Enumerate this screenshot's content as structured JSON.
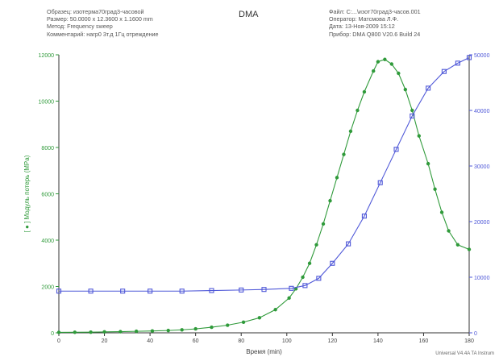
{
  "header": {
    "title": "DMA",
    "left_lines": [
      "Образец: изотерма70град3-часовой",
      "Размер:  50.0000 x 12.3600 x 1.1600 mm",
      "Метод: Frequency sweep",
      "Комментарий: нагр0 3т.д 1Гц отреждение"
    ],
    "right_lines": [
      "Файл: C:...\\изот70град3-часов.001",
      "Оператор: Матсмова Л.Ф.",
      "Дата: 13-Ноя-2009 15:12",
      "Прибор: DMA Q800 V20.6 Build 24"
    ]
  },
  "footer": {
    "credit": "Universal V4.4A TA Instrum"
  },
  "chart_data": {
    "type": "line",
    "xlabel": "Время (min)",
    "ylabel_left": "[ ● ] Модуль потерь (MPa)",
    "ylabel_right": "",
    "xlim": [
      0,
      180
    ],
    "ylim_left": [
      0,
      12000
    ],
    "ylim_right": [
      0,
      50000
    ],
    "x_ticks": [
      0,
      20,
      40,
      60,
      80,
      100,
      120,
      140,
      160,
      180
    ],
    "y_left_ticks": [
      0,
      2000,
      4000,
      6000,
      8000,
      10000,
      12000
    ],
    "y_right_ticks": [
      0,
      10000,
      20000,
      30000,
      40000,
      50000
    ],
    "grid": false,
    "colors": {
      "left_series": "#2f9a3a",
      "right_series": "#4f58d8",
      "axis_left": "#2f9a3a",
      "axis_right": "#4f58d8"
    },
    "series": [
      {
        "axis": "left",
        "marker": "circle",
        "color": "#2f9a3a",
        "x": [
          0,
          7,
          14,
          20,
          27,
          34,
          41,
          48,
          54,
          60,
          67,
          74,
          81,
          88,
          95,
          101,
          104,
          107,
          110,
          113,
          116,
          119,
          122,
          125,
          128,
          131,
          134,
          138,
          140,
          143,
          146,
          149,
          152,
          155,
          158,
          162,
          165,
          168,
          171,
          175,
          180
        ],
        "y": [
          20,
          25,
          30,
          40,
          50,
          65,
          80,
          100,
          130,
          170,
          240,
          330,
          460,
          650,
          1000,
          1500,
          1900,
          2400,
          3000,
          3800,
          4700,
          5700,
          6700,
          7700,
          8700,
          9600,
          10400,
          11300,
          11700,
          11800,
          11600,
          11200,
          10500,
          9600,
          8500,
          7300,
          6200,
          5200,
          4400,
          3800,
          3600
        ]
      },
      {
        "axis": "right",
        "marker": "square",
        "color": "#4f58d8",
        "x": [
          0,
          14,
          28,
          40,
          54,
          67,
          80,
          90,
          102,
          108,
          114,
          120,
          127,
          134,
          141,
          148,
          155,
          162,
          169,
          175,
          180
        ],
        "y": [
          7500,
          7500,
          7500,
          7500,
          7500,
          7600,
          7700,
          7800,
          8000,
          8500,
          9800,
          12500,
          16000,
          21000,
          27000,
          33000,
          39000,
          44000,
          47000,
          48500,
          49500
        ]
      }
    ]
  }
}
